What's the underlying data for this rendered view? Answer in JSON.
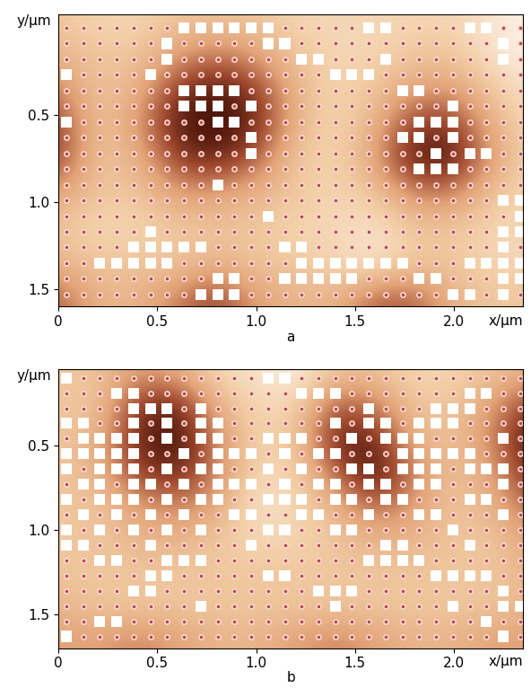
{
  "chart_data": [
    {
      "type": "heatmap",
      "label": "a",
      "x_label": "x/μm",
      "y_label": "y/μm",
      "xlim": [
        0,
        2.35
      ],
      "ylim": [
        1.6,
        -0.08
      ],
      "xticks": [
        0,
        0.5,
        1.0,
        1.5,
        2.0
      ],
      "yticks": [
        0.5,
        1.0,
        1.5
      ],
      "cell_x": [
        0,
        0.2,
        0.4,
        0.6,
        0.8,
        1.0,
        1.2,
        1.4,
        1.6,
        1.8,
        2.0,
        2.2,
        2.4
      ],
      "cell_y": [
        -0.05,
        0.15,
        0.35,
        0.55,
        0.75,
        0.95,
        1.15,
        1.35,
        1.55
      ],
      "cells": [
        [
          0.3,
          0.2,
          0.2,
          0.3,
          0.3,
          0.3,
          0.2,
          0.2,
          0.2,
          0.2,
          0.2,
          0.1,
          0.0
        ],
        [
          0.4,
          0.3,
          0.3,
          0.5,
          0.6,
          0.5,
          0.3,
          0.2,
          0.2,
          0.3,
          0.3,
          0.1,
          0.0
        ],
        [
          0.6,
          0.3,
          0.4,
          0.8,
          0.95,
          0.8,
          0.4,
          0.2,
          0.3,
          0.5,
          0.5,
          0.3,
          0.1
        ],
        [
          0.8,
          0.3,
          0.5,
          0.95,
          1.0,
          0.9,
          0.4,
          0.2,
          0.4,
          0.8,
          0.8,
          0.4,
          0.2
        ],
        [
          0.8,
          0.3,
          0.4,
          0.8,
          0.9,
          0.7,
          0.3,
          0.2,
          0.5,
          0.95,
          0.95,
          0.5,
          0.2
        ],
        [
          0.5,
          0.3,
          0.3,
          0.5,
          0.5,
          0.4,
          0.3,
          0.2,
          0.3,
          0.6,
          0.6,
          0.3,
          0.2
        ],
        [
          0.3,
          0.2,
          0.2,
          0.3,
          0.3,
          0.3,
          0.2,
          0.2,
          0.1,
          0.3,
          0.3,
          0.2,
          0.2
        ],
        [
          0.4,
          0.3,
          0.3,
          0.3,
          0.4,
          0.3,
          0.3,
          0.2,
          0.1,
          0.3,
          0.3,
          0.2,
          0.2
        ],
        [
          0.7,
          0.4,
          0.4,
          0.6,
          0.8,
          0.5,
          0.4,
          0.4,
          0.7,
          0.7,
          0.4,
          0.3,
          0.3
        ]
      ],
      "dot_x": [
        0.04,
        0.125,
        0.21,
        0.295,
        0.38,
        0.465,
        0.55,
        0.635,
        0.72,
        0.805,
        0.89,
        0.975,
        1.06,
        1.145,
        1.23,
        1.315,
        1.4,
        1.485,
        1.57,
        1.655,
        1.74,
        1.825,
        1.91,
        1.995,
        2.08,
        2.165,
        2.25,
        2.335
      ],
      "dot_y": [
        0.0,
        0.09,
        0.18,
        0.27,
        0.36,
        0.45,
        0.54,
        0.63,
        0.72,
        0.81,
        0.9,
        0.99,
        1.08,
        1.17,
        1.26,
        1.35,
        1.44,
        1.53
      ],
      "squares": [
        {
          "y": 0.0,
          "x": [
            0.635,
            0.72,
            0.805,
            0.89,
            0.975,
            1.06,
            1.57,
            1.655,
            2.08,
            2.165
          ]
        },
        {
          "y": 0.09,
          "x": [
            0.55,
            1.06,
            1.145,
            2.25
          ]
        },
        {
          "y": 0.18,
          "x": [
            0.55,
            1.23,
            1.315,
            1.655,
            2.25
          ]
        },
        {
          "y": 0.27,
          "x": [
            0.04,
            0.465,
            1.4,
            1.485,
            1.57
          ]
        },
        {
          "y": 0.36,
          "x": [
            0.635,
            0.72,
            0.805,
            0.89,
            1.74,
            1.825
          ]
        },
        {
          "y": 0.45,
          "x": [
            0.635,
            0.72,
            0.805,
            0.975,
            1.995
          ]
        },
        {
          "y": 0.54,
          "x": [
            0.04,
            0.805,
            0.89,
            1.825,
            1.91,
            1.995
          ]
        },
        {
          "y": 0.63,
          "x": [
            0.975,
            1.74,
            1.825,
            1.995
          ]
        },
        {
          "y": 0.72,
          "x": [
            0.975,
            1.91,
            2.08,
            2.165
          ]
        },
        {
          "y": 0.81,
          "x": [
            1.825,
            1.91,
            1.995
          ]
        },
        {
          "y": 0.9,
          "x": [
            0.805
          ]
        },
        {
          "y": 0.99,
          "x": [
            2.25,
            2.335
          ]
        },
        {
          "y": 1.08,
          "x": [
            1.06,
            2.335
          ]
        },
        {
          "y": 1.17,
          "x": [
            0.465,
            2.25,
            2.335
          ]
        },
        {
          "y": 1.26,
          "x": [
            0.38,
            0.465,
            0.55,
            0.635,
            0.72,
            1.145,
            1.23,
            2.25
          ]
        },
        {
          "y": 1.35,
          "x": [
            0.21,
            0.295,
            0.38,
            0.465,
            0.55,
            1.23,
            1.315,
            1.4,
            1.485,
            1.57,
            1.655,
            1.74,
            2.08,
            2.165,
            2.25,
            2.335
          ]
        },
        {
          "y": 1.44,
          "x": [
            0.805,
            0.89,
            1.145,
            1.23,
            1.315,
            1.4,
            1.485,
            1.825,
            1.91,
            2.25,
            2.335
          ]
        },
        {
          "y": 1.53,
          "x": [
            0.72,
            0.805,
            0.89,
            1.995,
            2.08,
            2.25
          ]
        }
      ]
    },
    {
      "type": "heatmap",
      "label": "b",
      "x_label": "x/μm",
      "y_label": "y/μm",
      "xlim": [
        0,
        2.35
      ],
      "ylim": [
        1.7,
        0.05
      ],
      "xticks": [
        0,
        0.5,
        1.0,
        1.5,
        2.0
      ],
      "yticks": [
        0.5,
        1.0,
        1.5
      ],
      "cell_x": [
        0,
        0.2,
        0.4,
        0.6,
        0.8,
        1.0,
        1.2,
        1.4,
        1.6,
        1.8,
        2.0,
        2.2,
        2.4
      ],
      "cell_y": [
        0.05,
        0.25,
        0.45,
        0.65,
        0.85,
        1.05,
        1.25,
        1.45,
        1.65
      ],
      "cells": [
        [
          0.3,
          0.3,
          0.5,
          0.4,
          0.2,
          0.1,
          0.0,
          0.3,
          0.3,
          0.2,
          0.2,
          0.3,
          0.4
        ],
        [
          0.3,
          0.3,
          0.8,
          0.9,
          0.4,
          0.2,
          0.2,
          0.7,
          0.6,
          0.3,
          0.3,
          0.5,
          0.8
        ],
        [
          0.3,
          0.4,
          0.9,
          1.0,
          0.6,
          0.2,
          0.3,
          0.9,
          0.9,
          0.4,
          0.3,
          0.6,
          1.0
        ],
        [
          0.3,
          0.4,
          0.8,
          0.9,
          0.6,
          0.2,
          0.2,
          0.7,
          1.0,
          0.6,
          0.3,
          0.5,
          0.9
        ],
        [
          0.3,
          0.3,
          0.5,
          0.6,
          0.5,
          0.1,
          0.2,
          0.4,
          0.7,
          0.5,
          0.3,
          0.4,
          0.7
        ],
        [
          0.3,
          0.3,
          0.4,
          0.4,
          0.3,
          0.2,
          0.2,
          0.3,
          0.4,
          0.4,
          0.3,
          0.3,
          0.5
        ],
        [
          0.3,
          0.3,
          0.3,
          0.3,
          0.3,
          0.3,
          0.3,
          0.3,
          0.3,
          0.3,
          0.3,
          0.3,
          0.4
        ],
        [
          0.4,
          0.3,
          0.3,
          0.3,
          0.3,
          0.3,
          0.3,
          0.3,
          0.3,
          0.3,
          0.3,
          0.3,
          0.4
        ],
        [
          0.5,
          0.5,
          0.6,
          0.5,
          0.4,
          0.4,
          0.5,
          0.6,
          0.5,
          0.4,
          0.4,
          0.5,
          0.5
        ]
      ],
      "dot_x": [
        0.04,
        0.125,
        0.21,
        0.295,
        0.38,
        0.465,
        0.55,
        0.635,
        0.72,
        0.805,
        0.89,
        0.975,
        1.06,
        1.145,
        1.23,
        1.315,
        1.4,
        1.485,
        1.57,
        1.655,
        1.74,
        1.825,
        1.91,
        1.995,
        2.08,
        2.165,
        2.25,
        2.335
      ],
      "dot_y": [
        0.1,
        0.19,
        0.28,
        0.37,
        0.46,
        0.55,
        0.64,
        0.73,
        0.82,
        0.91,
        1.0,
        1.09,
        1.18,
        1.27,
        1.36,
        1.45,
        1.54,
        1.63
      ],
      "squares": [
        {
          "y": 0.1,
          "x": [
            0.04,
            1.06,
            1.145
          ]
        },
        {
          "y": 0.19,
          "x": [
            0.295,
            0.38,
            1.23,
            1.315,
            1.4,
            2.08,
            2.165
          ]
        },
        {
          "y": 0.28,
          "x": [
            0.38,
            0.465,
            0.55,
            0.72,
            1.57,
            1.91,
            1.995,
            2.08
          ]
        },
        {
          "y": 0.37,
          "x": [
            0.04,
            0.125,
            0.38,
            0.55,
            0.72,
            0.805,
            1.4,
            1.57,
            1.655,
            1.825,
            1.91,
            1.995
          ]
        },
        {
          "y": 0.46,
          "x": [
            0.125,
            0.21,
            0.295,
            0.38,
            0.55,
            0.72,
            0.805,
            1.06,
            1.145,
            1.23,
            1.485,
            1.655,
            1.74,
            1.825,
            2.25
          ]
        },
        {
          "y": 0.55,
          "x": [
            0.04,
            0.125,
            0.21,
            0.295,
            0.38,
            0.635,
            0.805,
            0.89,
            0.975,
            1.145,
            1.315,
            1.4,
            1.74,
            1.825,
            1.91,
            1.995,
            2.08
          ]
        },
        {
          "y": 0.64,
          "x": [
            0.04,
            0.21,
            0.295,
            0.38,
            0.55,
            0.72,
            0.805,
            1.06,
            1.23,
            1.485,
            1.57,
            1.74,
            1.825,
            1.91,
            2.08,
            2.165,
            2.25
          ]
        },
        {
          "y": 0.73,
          "x": [
            0.125,
            0.21,
            0.38,
            0.465,
            0.635,
            0.805,
            0.89,
            0.975,
            1.145,
            1.315,
            1.4,
            1.57,
            1.655,
            1.825,
            1.91,
            2.25
          ]
        },
        {
          "y": 0.82,
          "x": [
            0.04,
            0.21,
            0.295,
            0.38,
            0.55,
            0.72,
            0.805,
            1.06,
            1.145,
            1.23,
            1.4,
            1.485,
            1.655,
            1.74,
            2.08,
            2.165
          ]
        },
        {
          "y": 0.91,
          "x": [
            0.125,
            0.295,
            0.465,
            0.635,
            0.89,
            0.975,
            1.23,
            1.315,
            1.57,
            1.825,
            1.91,
            2.25
          ]
        },
        {
          "y": 1.0,
          "x": [
            0.04,
            0.21,
            0.38,
            0.55,
            0.72,
            1.06,
            1.145,
            1.4,
            1.485,
            1.995
          ]
        },
        {
          "y": 1.09,
          "x": [
            0.04,
            0.125,
            0.465,
            0.975,
            1.655,
            1.74,
            2.08
          ]
        },
        {
          "y": 1.18,
          "x": [
            0.21,
            0.295,
            0.55,
            0.635,
            0.72,
            1.57,
            1.655,
            1.74,
            1.825
          ]
        },
        {
          "y": 1.27,
          "x": [
            0.465,
            0.55,
            1.06,
            1.145,
            1.91,
            1.995,
            2.08,
            2.165
          ]
        },
        {
          "y": 1.36,
          "x": [
            0.38,
            0.465,
            1.315,
            1.4,
            1.485,
            2.25
          ]
        },
        {
          "y": 1.45,
          "x": [
            0.72,
            1.4,
            1.995,
            2.25,
            2.335
          ]
        },
        {
          "y": 1.54,
          "x": [
            0.21,
            0.295,
            2.165
          ]
        },
        {
          "y": 1.63,
          "x": [
            0.04,
            2.25
          ]
        }
      ]
    }
  ]
}
